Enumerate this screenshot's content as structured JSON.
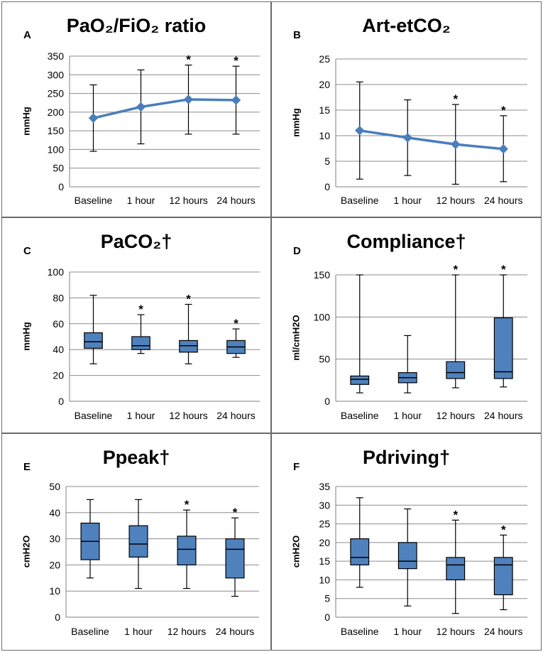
{
  "colors": {
    "box_fill": "#4f81bd",
    "line": "#4a7ebb",
    "grid": "#8c8c8c",
    "whisker": "#000000"
  },
  "chart_data": [
    {
      "id": "A",
      "label": "A",
      "title": "PaO₂/FiO₂ ratio",
      "type": "line",
      "ylabel": "mmHg",
      "ylim": [
        0,
        350
      ],
      "yticks": [
        0,
        50,
        100,
        150,
        200,
        250,
        300,
        350
      ],
      "categories": [
        "Baseline",
        "1 hour",
        "12 hours",
        "24 hours"
      ],
      "values": [
        184,
        214,
        234,
        232
      ],
      "whisker_low": [
        95,
        115,
        141,
        141
      ],
      "whisker_high": [
        273,
        313,
        326,
        323
      ],
      "significant": [
        false,
        false,
        true,
        true
      ]
    },
    {
      "id": "B",
      "label": "B",
      "title": "Art-etCO₂",
      "type": "line",
      "ylabel": "mmHg",
      "ylim": [
        0,
        25
      ],
      "yticks": [
        0,
        5,
        10,
        15,
        20,
        25
      ],
      "categories": [
        "Baseline",
        "1 hour",
        "12 hours",
        "24 hours"
      ],
      "values": [
        11,
        9.6,
        8.3,
        7.4
      ],
      "whisker_low": [
        1.5,
        2.2,
        0.5,
        1
      ],
      "whisker_high": [
        20.5,
        17,
        16.1,
        13.9
      ],
      "significant": [
        false,
        false,
        true,
        true
      ]
    },
    {
      "id": "C",
      "label": "C",
      "title": "PaCO₂†",
      "type": "box",
      "ylabel": "mmHg",
      "ylim": [
        0,
        100
      ],
      "yticks": [
        0,
        20,
        40,
        60,
        80,
        100
      ],
      "categories": [
        "Baseline",
        "1 hour",
        "12 hours",
        "24 hours"
      ],
      "boxes": [
        {
          "min": 29,
          "q1": 41,
          "median": 46,
          "q3": 53,
          "max": 82
        },
        {
          "min": 37,
          "q1": 40,
          "median": 43,
          "q3": 50,
          "max": 67
        },
        {
          "min": 29,
          "q1": 38,
          "median": 43,
          "q3": 47,
          "max": 75
        },
        {
          "min": 34,
          "q1": 37,
          "median": 42,
          "q3": 47,
          "max": 56
        }
      ],
      "significant": [
        false,
        true,
        true,
        true
      ]
    },
    {
      "id": "D",
      "label": "D",
      "title": "Compliance†",
      "type": "box",
      "ylabel": "ml/cmH2O",
      "ylim": [
        0,
        150
      ],
      "yticks": [
        0,
        50,
        100,
        150
      ],
      "categories": [
        "Baseline",
        "1 hour",
        "12 hours",
        "24 hours"
      ],
      "boxes": [
        {
          "min": 10,
          "q1": 20,
          "median": 26,
          "q3": 30,
          "max": 150
        },
        {
          "min": 10,
          "q1": 22,
          "median": 28,
          "q3": 34,
          "max": 78
        },
        {
          "min": 16,
          "q1": 27,
          "median": 34,
          "q3": 47,
          "max": 150
        },
        {
          "min": 17,
          "q1": 27,
          "median": 35,
          "q3": 99,
          "max": 150
        }
      ],
      "significant": [
        false,
        false,
        true,
        true
      ]
    },
    {
      "id": "E",
      "label": "E",
      "title": "Ppeak†",
      "type": "box",
      "ylabel": "cmH2O",
      "ylim": [
        0,
        50
      ],
      "yticks": [
        0,
        10,
        20,
        30,
        40,
        50
      ],
      "categories": [
        "Baseline",
        "1 hour",
        "12 hours",
        "24 hours"
      ],
      "boxes": [
        {
          "min": 15,
          "q1": 22,
          "median": 29,
          "q3": 36,
          "max": 45
        },
        {
          "min": 11,
          "q1": 23,
          "median": 28,
          "q3": 35,
          "max": 45
        },
        {
          "min": 11,
          "q1": 20,
          "median": 26,
          "q3": 31,
          "max": 41
        },
        {
          "min": 8,
          "q1": 15,
          "median": 26,
          "q3": 30,
          "max": 38
        }
      ],
      "significant": [
        false,
        false,
        true,
        true
      ]
    },
    {
      "id": "F",
      "label": "F",
      "title": "Pdriving†",
      "type": "box",
      "ylabel": "cmH2O",
      "ylim": [
        0,
        35
      ],
      "yticks": [
        0,
        5,
        10,
        15,
        20,
        25,
        30,
        35
      ],
      "categories": [
        "Baseline",
        "1 hour",
        "12 hours",
        "24 hours"
      ],
      "boxes": [
        {
          "min": 8,
          "q1": 14,
          "median": 16,
          "q3": 21,
          "max": 32
        },
        {
          "min": 3,
          "q1": 13,
          "median": 15,
          "q3": 20,
          "max": 29
        },
        {
          "min": 1,
          "q1": 10,
          "median": 14,
          "q3": 16,
          "max": 26
        },
        {
          "min": 2,
          "q1": 6,
          "median": 14,
          "q3": 16,
          "max": 22
        }
      ],
      "significant": [
        false,
        false,
        true,
        true
      ]
    }
  ],
  "significance_marker": "*"
}
